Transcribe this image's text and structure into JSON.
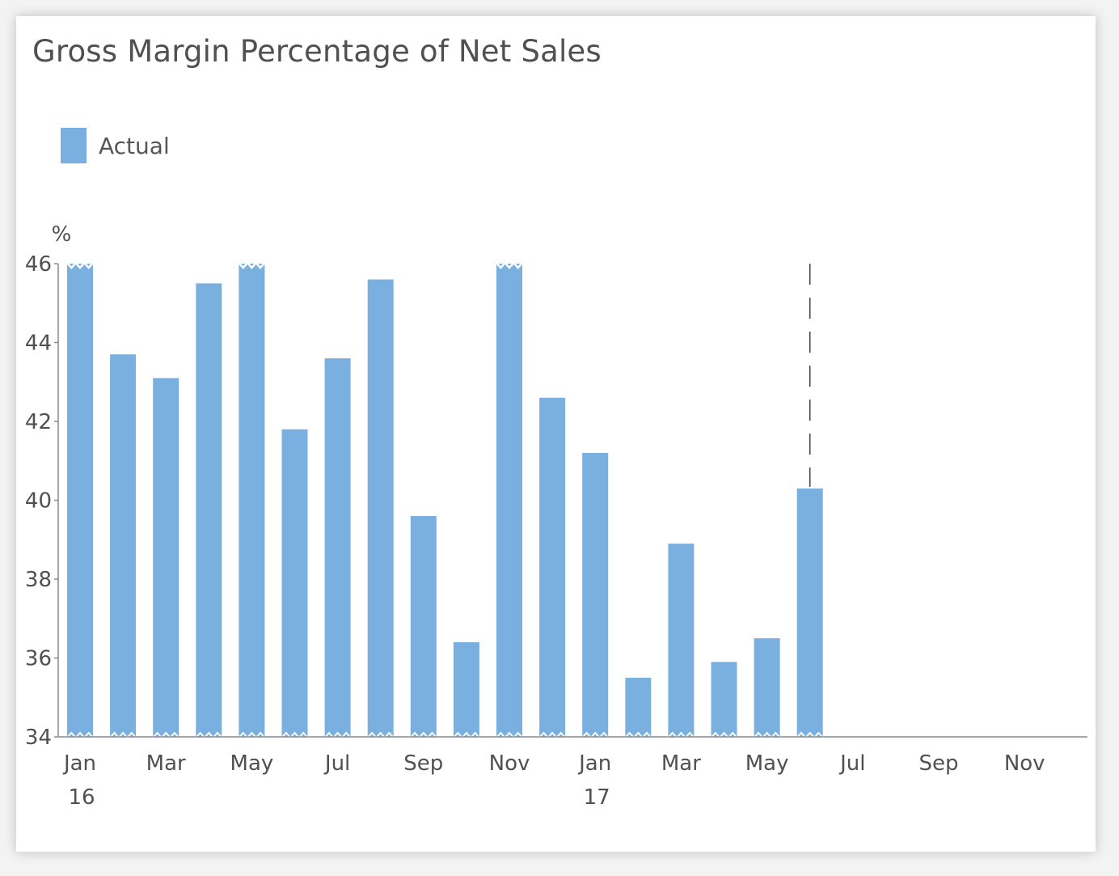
{
  "chart_data": {
    "type": "bar",
    "title": "Gross Margin Percentage of Net Sales",
    "ylabel": "%",
    "ylim": [
      34,
      46
    ],
    "yticks": [
      "34",
      "36",
      "38",
      "40",
      "42",
      "44",
      "46"
    ],
    "x_tick_labels": [
      {
        "month": "Jan",
        "year": "16"
      },
      {
        "month": "Mar",
        "year": ""
      },
      {
        "month": "May",
        "year": ""
      },
      {
        "month": "Jul",
        "year": ""
      },
      {
        "month": "Sep",
        "year": ""
      },
      {
        "month": "Nov",
        "year": ""
      },
      {
        "month": "Jan",
        "year": "17"
      },
      {
        "month": "Mar",
        "year": ""
      },
      {
        "month": "May",
        "year": ""
      },
      {
        "month": "Jul",
        "year": ""
      },
      {
        "month": "Sep",
        "year": ""
      },
      {
        "month": "Nov",
        "year": ""
      }
    ],
    "series": [
      {
        "name": "Actual",
        "color": "#7ab0df",
        "values": [
          46.2,
          43.7,
          43.1,
          45.5,
          46.3,
          41.8,
          43.6,
          45.6,
          39.6,
          36.4,
          46.5,
          42.6,
          41.2,
          35.5,
          38.9,
          35.9,
          36.5,
          40.3
        ]
      }
    ],
    "clipped_top_indices": [
      0,
      4,
      10
    ],
    "axis_break_at_bottom": true,
    "total_months": 24,
    "current_month_marker": "after Jun 17",
    "legend_position": "top-left",
    "grid": false
  }
}
